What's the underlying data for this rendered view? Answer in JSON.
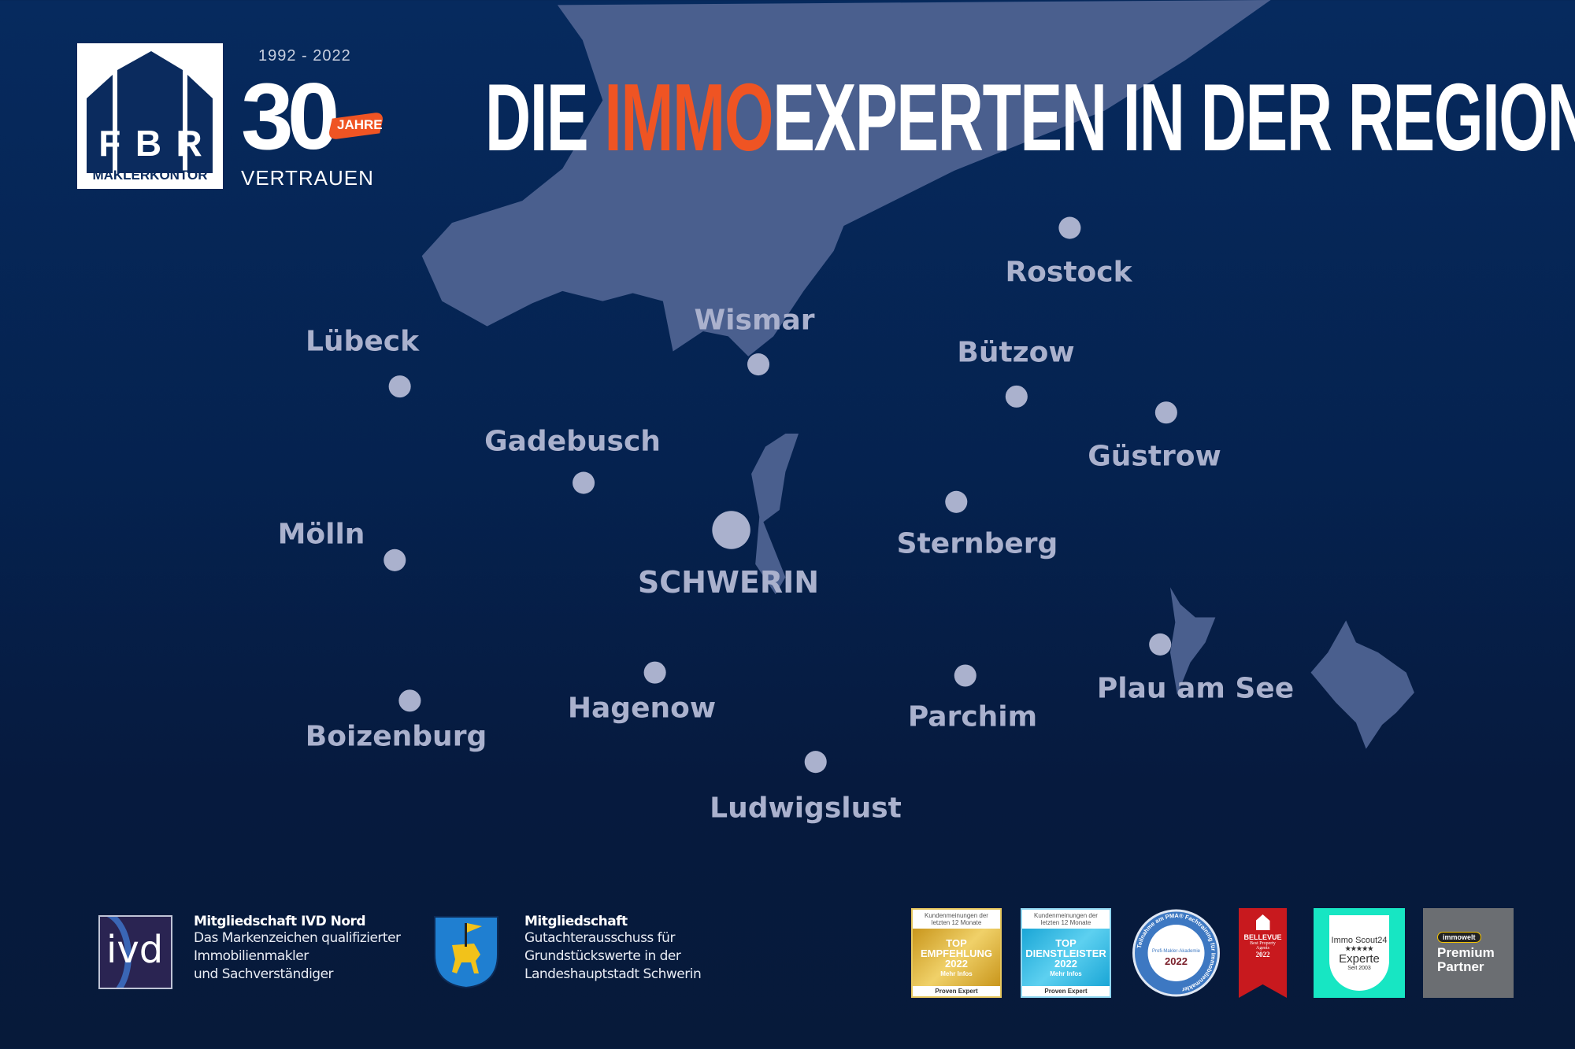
{
  "header": {
    "logo": {
      "letters": [
        "F",
        "B",
        "R"
      ],
      "subtitle": "MAKLERKONTOR"
    },
    "anniversary": {
      "years": "1992 - 2022",
      "number": "30",
      "ribbon": "JAHRE",
      "tagline": "VERTRAUEN"
    },
    "title_prefix": "DIE ",
    "title_highlight": "IMMO",
    "title_suffix": "EXPERTEN IN DER REGION"
  },
  "colors": {
    "background": "#05224f",
    "map_water": "#4a5f8e",
    "city": "#aab1cd",
    "accent": "#ef5423"
  },
  "cities": [
    {
      "name": "Lübeck"
    },
    {
      "name": "Wismar"
    },
    {
      "name": "Rostock"
    },
    {
      "name": "Bützow"
    },
    {
      "name": "Güstrow"
    },
    {
      "name": "Gadebusch"
    },
    {
      "name": "Mölln"
    },
    {
      "name": "SCHWERIN"
    },
    {
      "name": "Sternberg"
    },
    {
      "name": "Hagenow"
    },
    {
      "name": "Boizenburg"
    },
    {
      "name": "Parchim"
    },
    {
      "name": "Plau am See"
    },
    {
      "name": "Ludwigslust"
    }
  ],
  "memberships": [
    {
      "logo": "ivd",
      "title": "Mitgliedschaft IVD Nord",
      "lines": [
        "Das Markenzeichen qualifizierter",
        "Immobilienmakler",
        "und Sachverständiger"
      ]
    },
    {
      "logo": "schwerin-coat-of-arms",
      "title": "Mitgliedschaft",
      "lines": [
        "Gutachterausschuss für",
        "Grundstückswerte in der",
        "Landeshauptstadt Schwerin"
      ]
    }
  ],
  "badges": [
    {
      "top": "Kundenmeinungen der letzten 12 Monate",
      "main": "TOP EMPFEHLUNG 2022",
      "info": "Mehr Infos",
      "brand": "Proven Expert",
      "color": "#d7a928"
    },
    {
      "top": "Kundenmeinungen der letzten 12 Monate",
      "main": "TOP DIENSTLEISTER 2022",
      "info": "Mehr Infos",
      "brand": "Proven Expert",
      "color": "#2bb3df"
    },
    {
      "ring": "Teilnahme am PMA® Fachtraining für Immobilienmakler",
      "inner": "Profi-Makler-Akademie",
      "year": "2022",
      "color": "#3d78c2"
    },
    {
      "name": "BELLEVUE",
      "sub": "Best Property Agents",
      "year": "2022",
      "color": "#c8191e"
    },
    {
      "brand": "Immo Scout24",
      "stars": "★★★★★",
      "main": "Experte",
      "since": "Seit 2003",
      "color": "#17e6c3"
    },
    {
      "brand": "immowelt",
      "main": "Premium Partner",
      "color": "#6b6e72"
    }
  ]
}
